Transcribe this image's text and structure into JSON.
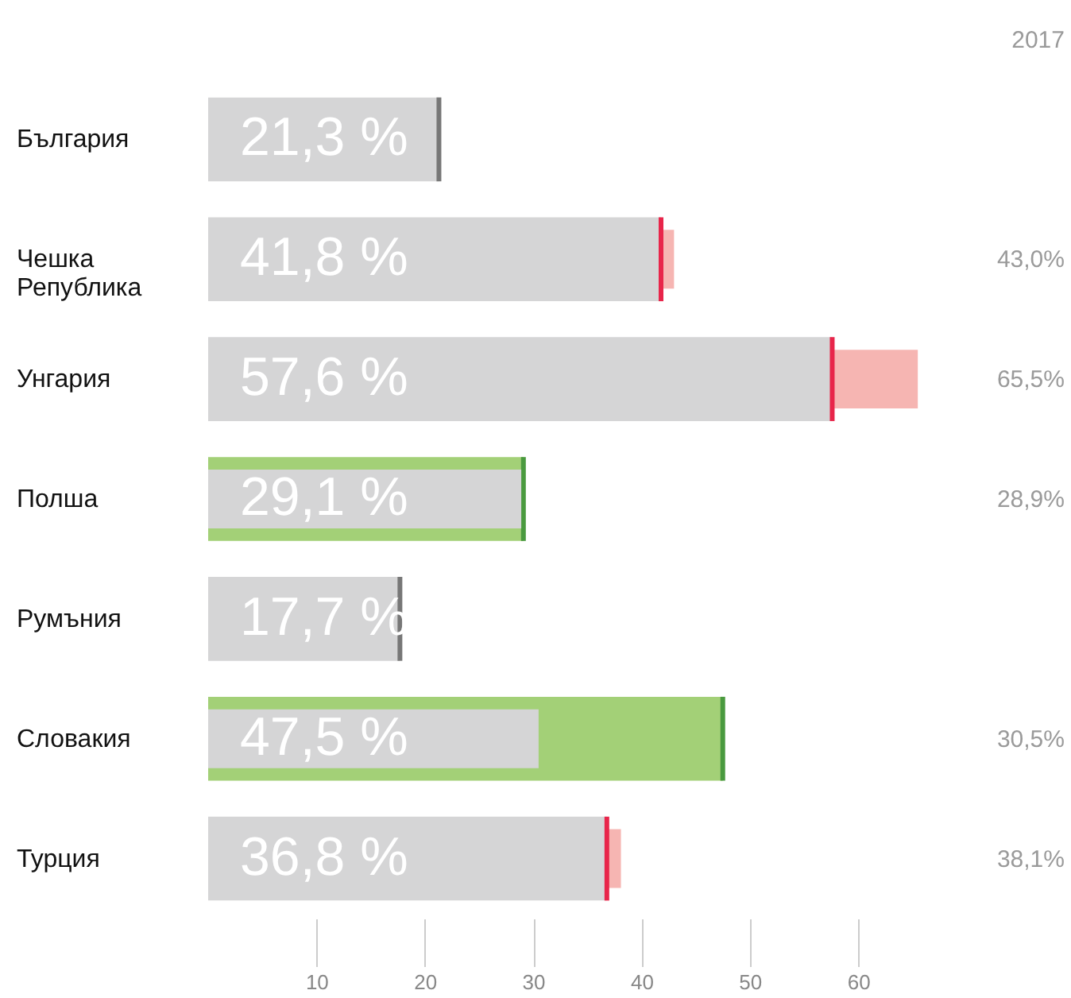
{
  "chart_data": {
    "type": "bar",
    "orientation": "horizontal",
    "categories": [
      "България",
      "Чешка Република",
      "Унгария",
      "Полша",
      "Румъния",
      "Словакия",
      "Турция"
    ],
    "series": [
      {
        "colors": [
          "#d5d5d6",
          "#d5d5d6",
          "#d5d5d6",
          "#a3d077",
          "#d5d5d6",
          "#a3d077",
          "#d5d5d6"
        ],
        "values": [
          21.3,
          41.8,
          57.6,
          29.1,
          17.7,
          47.5,
          36.8
        ],
        "value_labels": [
          "21,3 %",
          "41,8 %",
          "57,6 %",
          "29,1 %",
          "17,7 %",
          "47,5 %",
          "36,8 %"
        ]
      },
      {
        "name": "2017",
        "colors": [
          null,
          "#f6b5b2",
          "#f6b5b2",
          "#d5d5d6",
          null,
          "#d5d5d6",
          "#f6b5b2"
        ],
        "values": [
          null,
          43.0,
          65.5,
          28.9,
          null,
          30.5,
          38.1
        ],
        "value_labels": [
          null,
          "43,0%",
          "65,5%",
          "28,9%",
          null,
          "30,5%",
          "38,1%"
        ]
      }
    ],
    "xlim": [
      0,
      66
    ],
    "xticks": [
      10,
      20,
      30,
      40,
      50,
      60
    ]
  }
}
